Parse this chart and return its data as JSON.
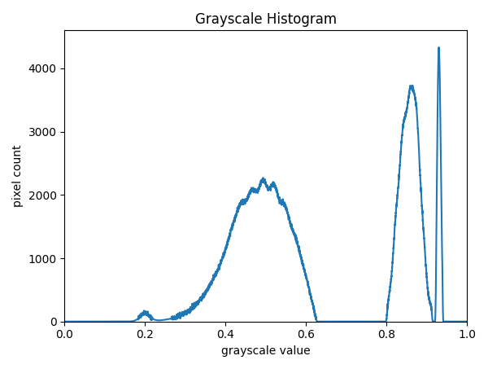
{
  "title": "Grayscale Histogram",
  "xlabel": "grayscale value",
  "ylabel": "pixel count",
  "xlim": [
    0.0,
    1.0
  ],
  "ylim": [
    0,
    4600
  ],
  "yticks": [
    0,
    1000,
    2000,
    3000,
    4000
  ],
  "line_color": "#1f77b4",
  "line_width": 1.5,
  "figsize": [
    6.0,
    4.53
  ],
  "dpi": 100
}
